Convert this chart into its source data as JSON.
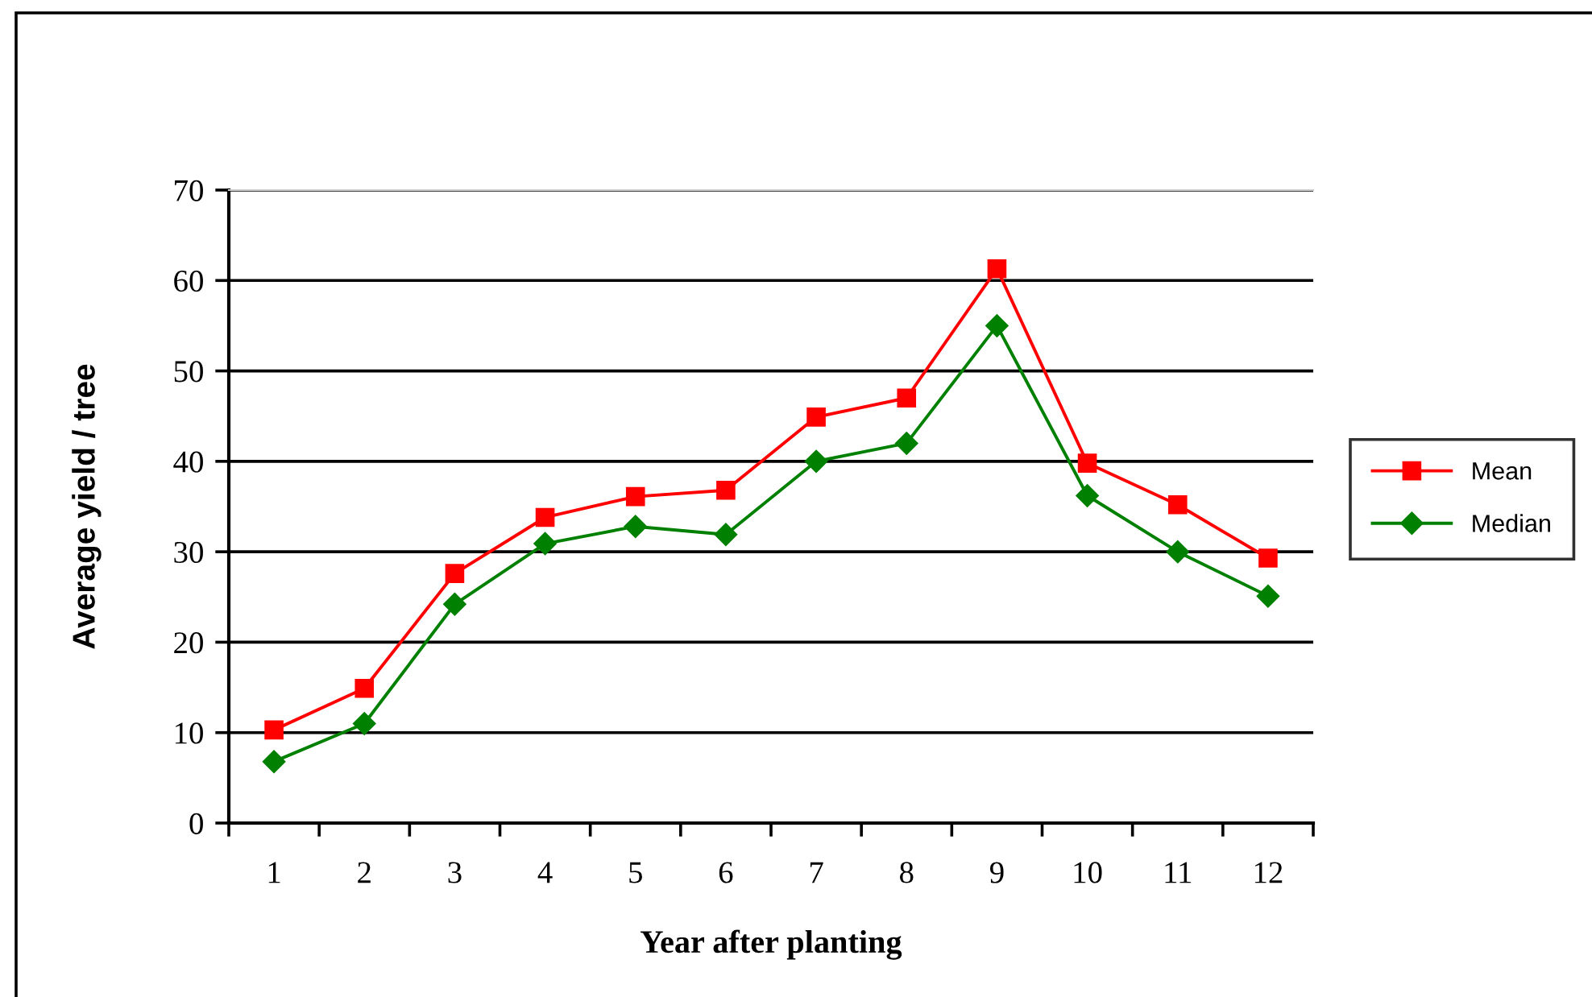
{
  "chart_data": {
    "type": "line",
    "xlabel": "Year after planting",
    "ylabel": "Average yield / tree",
    "categories": [
      "1",
      "2",
      "3",
      "4",
      "5",
      "6",
      "7",
      "8",
      "9",
      "10",
      "11",
      "12"
    ],
    "series": [
      {
        "name": "Mean",
        "color": "#ff0000",
        "marker": "square",
        "values": [
          10.3,
          14.9,
          27.6,
          33.8,
          36.1,
          36.8,
          44.9,
          47.0,
          61.3,
          39.8,
          35.2,
          29.3
        ]
      },
      {
        "name": "Median",
        "color": "#008000",
        "marker": "diamond",
        "values": [
          6.8,
          11.0,
          24.2,
          30.9,
          32.8,
          31.9,
          40.0,
          42.0,
          55.0,
          36.2,
          30.0,
          25.1
        ]
      }
    ],
    "ylim": [
      0,
      70
    ],
    "yticks": [
      0,
      10,
      20,
      30,
      40,
      50,
      60,
      70
    ],
    "grid": "y",
    "legend": "right",
    "line_style": "solid"
  }
}
